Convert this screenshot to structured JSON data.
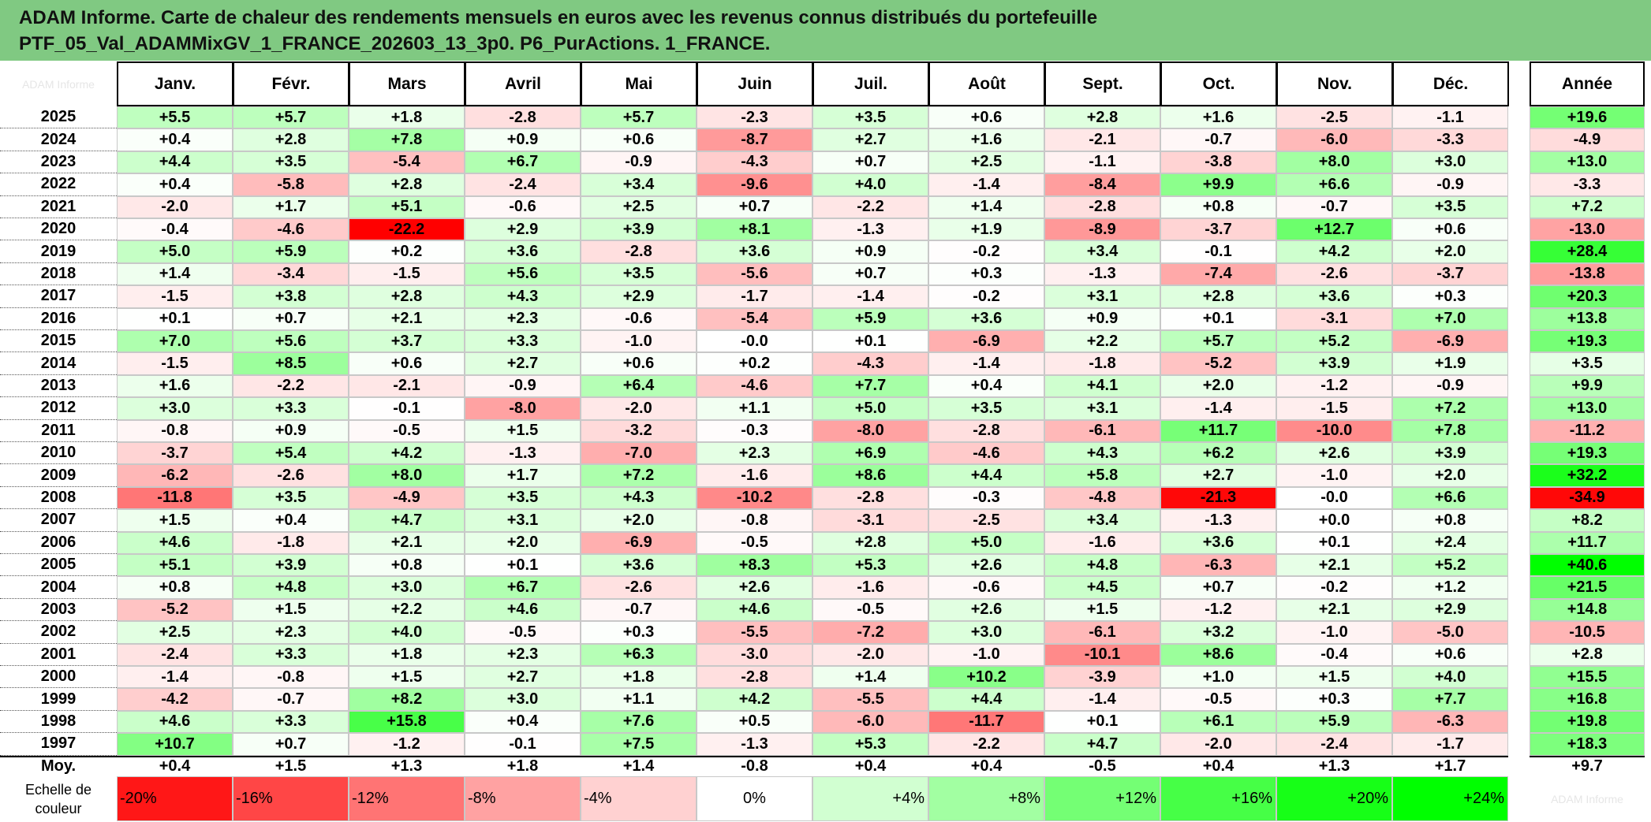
{
  "title": {
    "line1": "ADAM Informe. Carte de chaleur des rendements mensuels en euros avec les revenus connus distribués du portefeuille",
    "line2": "PTF_05_Val_ADAMMixGV_1_FRANCE_202603_13_3p0. P6_PurActions. 1_FRANCE."
  },
  "chart_data": {
    "type": "heatmap",
    "title": "ADAM Informe. Carte de chaleur des rendements mensuels en euros avec les revenus connus distribués du portefeuille PTF_05_Val_ADAMMixGV_1_FRANCE_202603_13_3p0. P6_PurActions. 1_FRANCE.",
    "months": [
      "Janv.",
      "Févr.",
      "Mars",
      "Avril",
      "Mai",
      "Juin",
      "Juil.",
      "Août",
      "Sept.",
      "Oct.",
      "Nov.",
      "Déc."
    ],
    "year_header": "Année",
    "rows": [
      {
        "year": "2025",
        "values": [
          5.5,
          5.7,
          1.8,
          -2.8,
          5.7,
          -2.3,
          3.5,
          0.6,
          2.8,
          1.6,
          -2.5,
          -1.1
        ],
        "annual": 19.6
      },
      {
        "year": "2024",
        "values": [
          0.4,
          2.8,
          7.8,
          0.9,
          0.6,
          -8.7,
          2.7,
          1.6,
          -2.1,
          -0.7,
          -6.0,
          -3.3
        ],
        "annual": -4.9
      },
      {
        "year": "2023",
        "values": [
          4.4,
          3.5,
          -5.4,
          6.7,
          -0.9,
          -4.3,
          0.7,
          2.5,
          -1.1,
          -3.8,
          8.0,
          3.0
        ],
        "annual": 13.0
      },
      {
        "year": "2022",
        "values": [
          0.4,
          -5.8,
          2.8,
          -2.4,
          3.4,
          -9.6,
          4.0,
          -1.4,
          -8.4,
          9.9,
          6.6,
          -0.9
        ],
        "annual": -3.3
      },
      {
        "year": "2021",
        "values": [
          -2.0,
          1.7,
          5.1,
          -0.6,
          2.5,
          0.7,
          -2.2,
          1.4,
          -2.8,
          0.8,
          -0.7,
          3.5
        ],
        "annual": 7.2
      },
      {
        "year": "2020",
        "values": [
          -0.4,
          -4.6,
          -22.2,
          2.9,
          3.9,
          8.1,
          -1.3,
          1.9,
          -8.9,
          -3.7,
          12.7,
          0.6
        ],
        "annual": -13.0
      },
      {
        "year": "2019",
        "values": [
          5.0,
          5.9,
          0.2,
          3.6,
          -2.8,
          3.6,
          0.9,
          -0.2,
          3.4,
          -0.1,
          4.2,
          2.0
        ],
        "annual": 28.4
      },
      {
        "year": "2018",
        "values": [
          1.4,
          -3.4,
          -1.5,
          5.6,
          3.5,
          -5.6,
          0.7,
          0.3,
          -1.3,
          -7.4,
          -2.6,
          -3.7
        ],
        "annual": -13.8
      },
      {
        "year": "2017",
        "values": [
          -1.5,
          3.8,
          2.8,
          4.3,
          2.9,
          -1.7,
          -1.4,
          -0.2,
          3.1,
          2.8,
          3.6,
          0.3
        ],
        "annual": 20.3
      },
      {
        "year": "2016",
        "values": [
          0.1,
          0.7,
          2.1,
          2.3,
          -0.6,
          -5.4,
          5.9,
          3.6,
          0.9,
          0.1,
          -3.1,
          7.0
        ],
        "annual": 13.8
      },
      {
        "year": "2015",
        "values": [
          7.0,
          5.6,
          3.7,
          3.3,
          -1.0,
          -0.0,
          0.1,
          -6.9,
          2.2,
          5.7,
          5.2,
          -6.9
        ],
        "annual": 19.3
      },
      {
        "year": "2014",
        "values": [
          -1.5,
          8.5,
          0.6,
          2.7,
          0.6,
          0.2,
          -4.3,
          -1.4,
          -1.8,
          -5.2,
          3.9,
          1.9
        ],
        "annual": 3.5
      },
      {
        "year": "2013",
        "values": [
          1.6,
          -2.2,
          -2.1,
          -0.9,
          6.4,
          -4.6,
          7.7,
          0.4,
          4.1,
          2.0,
          -1.2,
          -0.9
        ],
        "annual": 9.9
      },
      {
        "year": "2012",
        "values": [
          3.0,
          3.3,
          -0.1,
          -8.0,
          -2.0,
          1.1,
          5.0,
          3.5,
          3.1,
          -1.4,
          -1.5,
          7.2
        ],
        "annual": 13.0
      },
      {
        "year": "2011",
        "values": [
          -0.8,
          0.9,
          -0.5,
          1.5,
          -3.2,
          -0.3,
          -8.0,
          -2.8,
          -6.1,
          11.7,
          -10.0,
          7.8
        ],
        "annual": -11.2
      },
      {
        "year": "2010",
        "values": [
          -3.7,
          5.4,
          4.2,
          -1.3,
          -7.0,
          2.3,
          6.9,
          -4.6,
          4.3,
          6.2,
          2.6,
          3.9
        ],
        "annual": 19.3
      },
      {
        "year": "2009",
        "values": [
          -6.2,
          -2.6,
          8.0,
          1.7,
          7.2,
          -1.6,
          8.6,
          4.4,
          5.8,
          2.7,
          -1.0,
          2.0
        ],
        "annual": 32.2
      },
      {
        "year": "2008",
        "values": [
          -11.8,
          3.5,
          -4.9,
          3.5,
          4.3,
          -10.2,
          -2.8,
          -0.3,
          -4.8,
          -21.3,
          -0.0,
          6.6
        ],
        "annual": -34.9
      },
      {
        "year": "2007",
        "values": [
          1.5,
          0.4,
          4.7,
          3.1,
          2.0,
          -0.8,
          -3.1,
          -2.5,
          3.4,
          -1.3,
          0.0,
          0.8
        ],
        "annual": 8.2
      },
      {
        "year": "2006",
        "values": [
          4.6,
          -1.8,
          2.1,
          2.0,
          -6.9,
          -0.5,
          2.8,
          5.0,
          -1.6,
          3.6,
          0.1,
          2.4
        ],
        "annual": 11.7
      },
      {
        "year": "2005",
        "values": [
          5.1,
          3.9,
          0.8,
          0.1,
          3.6,
          8.3,
          5.3,
          2.6,
          4.8,
          -6.3,
          2.1,
          5.2
        ],
        "annual": 40.6
      },
      {
        "year": "2004",
        "values": [
          0.8,
          4.8,
          3.0,
          6.7,
          -2.6,
          2.6,
          -1.6,
          -0.6,
          4.5,
          0.7,
          -0.2,
          1.2
        ],
        "annual": 21.5
      },
      {
        "year": "2003",
        "values": [
          -5.2,
          1.5,
          2.2,
          4.6,
          -0.7,
          4.6,
          -0.5,
          2.6,
          1.5,
          -1.2,
          2.1,
          2.9
        ],
        "annual": 14.8
      },
      {
        "year": "2002",
        "values": [
          2.5,
          2.3,
          4.0,
          -0.5,
          0.3,
          -5.5,
          -7.2,
          3.0,
          -6.1,
          3.2,
          -1.0,
          -5.0
        ],
        "annual": -10.5
      },
      {
        "year": "2001",
        "values": [
          -2.4,
          3.3,
          1.8,
          2.3,
          6.3,
          -3.0,
          -2.0,
          -1.0,
          -10.1,
          8.6,
          -0.4,
          0.6
        ],
        "annual": 2.8
      },
      {
        "year": "2000",
        "values": [
          -1.4,
          -0.8,
          1.5,
          2.7,
          1.8,
          -2.8,
          1.4,
          10.2,
          -3.9,
          1.0,
          1.5,
          4.0
        ],
        "annual": 15.5
      },
      {
        "year": "1999",
        "values": [
          -4.2,
          -0.7,
          8.2,
          3.0,
          1.1,
          4.2,
          -5.5,
          4.4,
          -1.4,
          -0.5,
          0.3,
          7.7
        ],
        "annual": 16.8
      },
      {
        "year": "1998",
        "values": [
          4.6,
          3.3,
          15.8,
          0.4,
          7.6,
          0.5,
          -6.0,
          -11.7,
          0.1,
          6.1,
          5.9,
          -6.3
        ],
        "annual": 19.8
      },
      {
        "year": "1997",
        "values": [
          10.7,
          0.7,
          -1.2,
          -0.1,
          7.5,
          -1.3,
          5.3,
          -2.2,
          4.7,
          -2.0,
          -2.4,
          -1.7
        ],
        "annual": 18.3
      }
    ],
    "average": {
      "label": "Moy.",
      "values": [
        0.4,
        1.5,
        1.3,
        1.8,
        1.4,
        -0.8,
        0.4,
        0.4,
        -0.5,
        0.4,
        1.3,
        1.7
      ],
      "annual": 9.7
    },
    "color_scale": {
      "label": "Echelle de couleur",
      "steps": [
        -20,
        -16,
        -12,
        -8,
        -4,
        0,
        4,
        8,
        12,
        16,
        20,
        24
      ],
      "labels": [
        "-20%",
        "-16%",
        "-12%",
        "-8%",
        "-4%",
        "0%",
        "+4%",
        "+8%",
        "+12%",
        "+16%",
        "+20%",
        "+24%"
      ],
      "negative_color": "#ff0000",
      "neutral_color": "#ffffff",
      "positive_color": "#00ff00"
    },
    "faint_corner_text": "ADAM Informe",
    "faint_legend_text": "ADAM Informe"
  }
}
